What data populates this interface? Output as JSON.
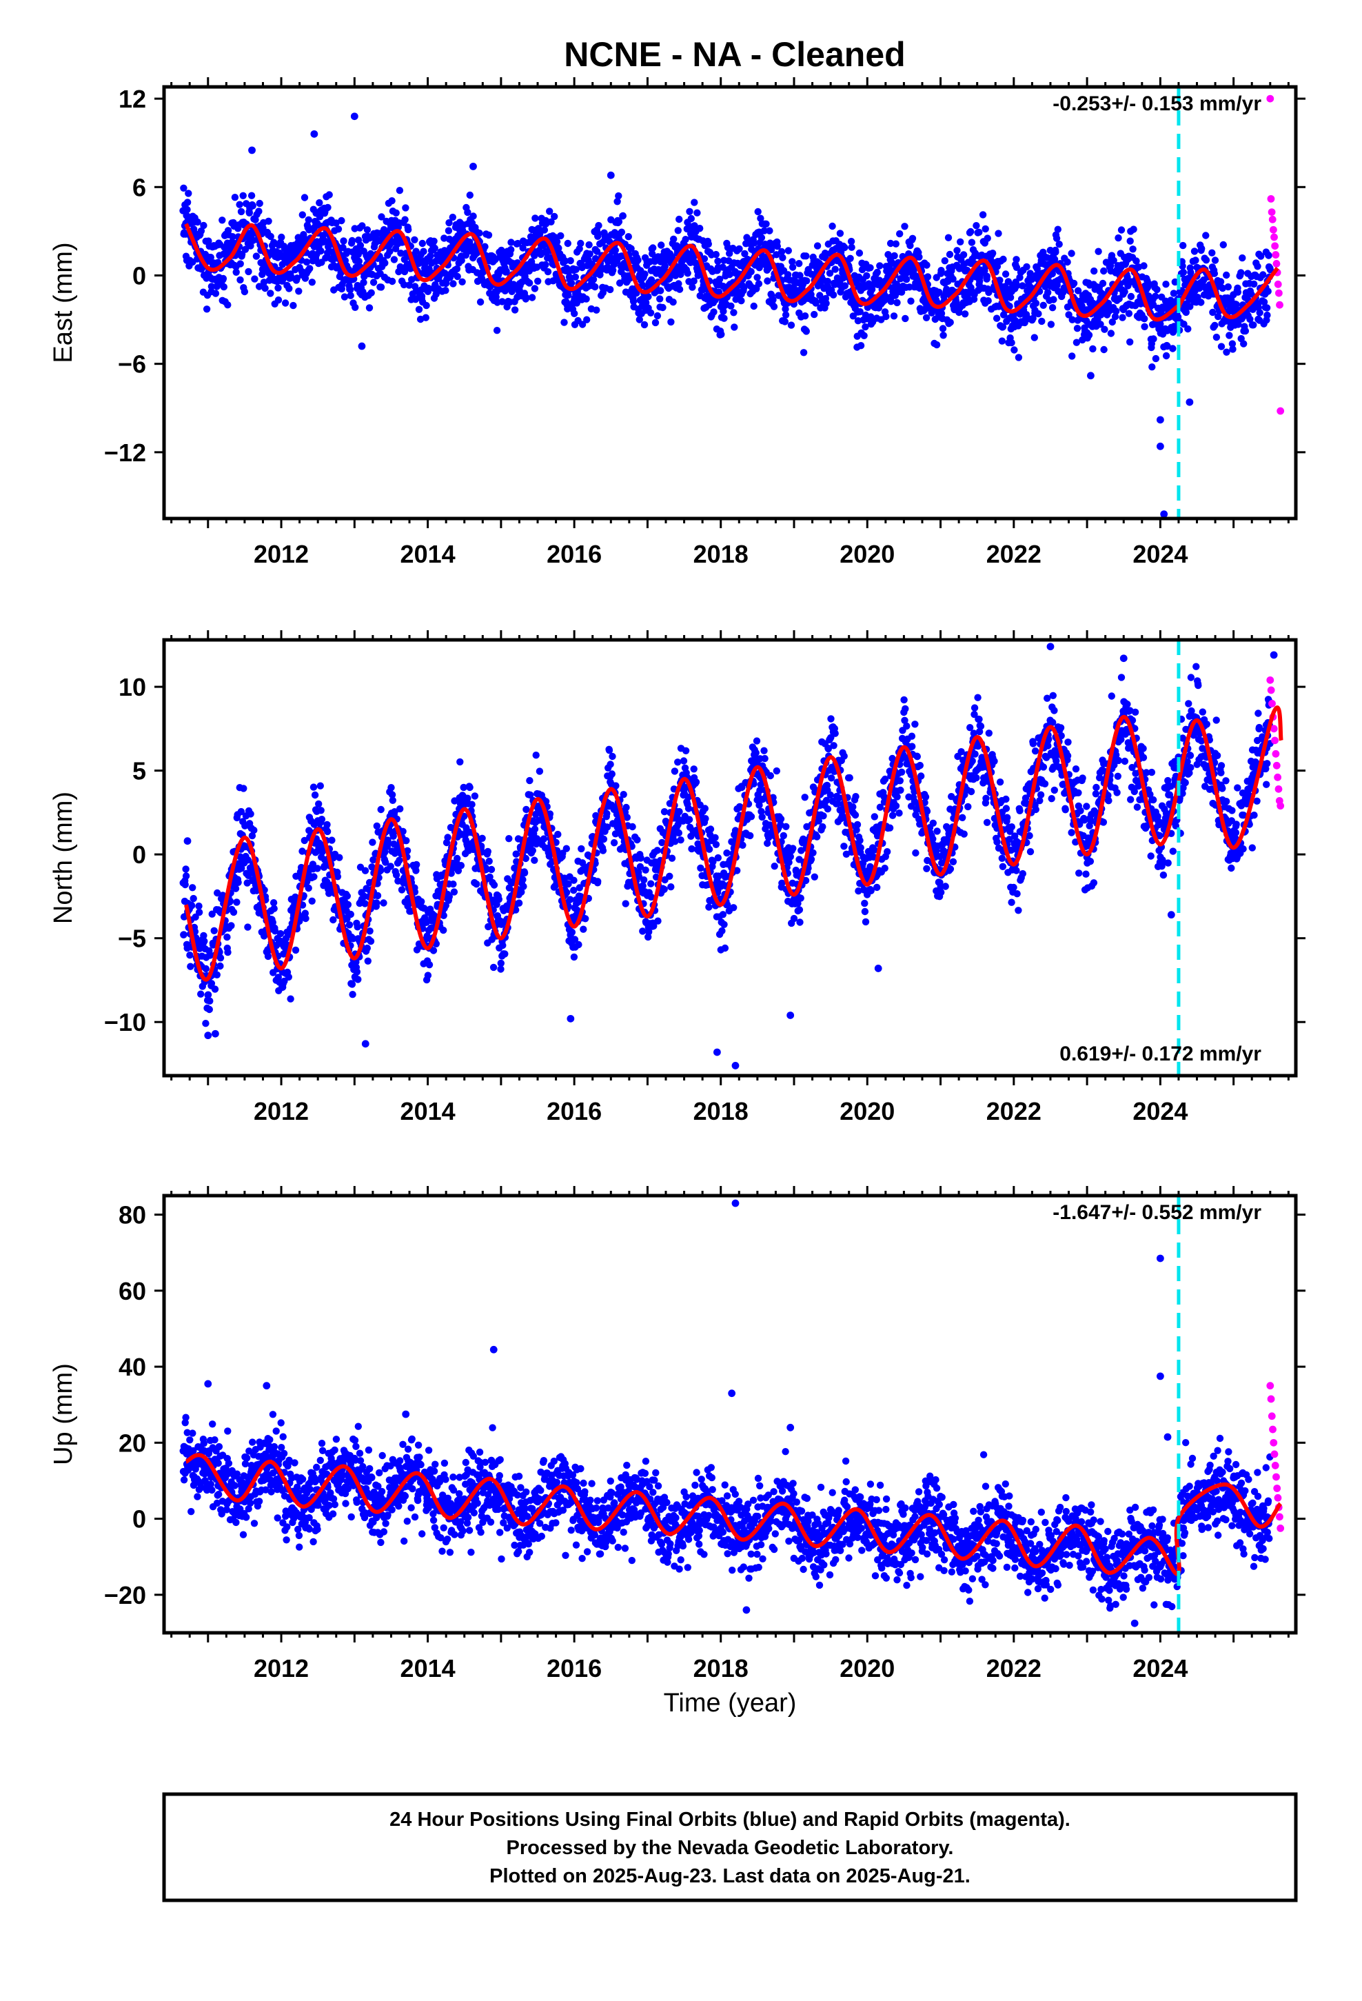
{
  "title": "NCNE  - NA - Cleaned",
  "colors": {
    "final_points": "#0000ff",
    "rapid_points": "#ff00ff",
    "model_curve": "#ff0000",
    "event_line": "#00e5ee",
    "frame": "#000000"
  },
  "chart_data": [
    {
      "type": "scatter",
      "panel": "east",
      "ylabel": "East (mm)",
      "xlabel": "",
      "xlim": [
        2010.4,
        2025.85
      ],
      "ylim": [
        -16.5,
        12.8
      ],
      "x_ticks": [
        2012,
        2014,
        2016,
        2018,
        2020,
        2022,
        2024
      ],
      "y_ticks": [
        12,
        6,
        0,
        -6,
        -12
      ],
      "y_tick_labels": [
        "12",
        "6",
        "0",
        "−6",
        "−12"
      ],
      "rate_text": "-0.253+/- 0.153 mm/yr",
      "rate_position": "top-right",
      "event_line_x": 2024.25,
      "model": {
        "x": [
          2010.7,
          2011.0,
          2011.3,
          2011.6,
          2011.9,
          2012.2,
          2012.6,
          2012.9,
          2013.2,
          2013.6,
          2013.9,
          2014.2,
          2014.6,
          2014.9,
          2015.2,
          2015.6,
          2015.9,
          2016.2,
          2016.6,
          2016.9,
          2017.2,
          2017.6,
          2017.9,
          2018.2,
          2018.6,
          2018.9,
          2019.2,
          2019.6,
          2019.9,
          2020.2,
          2020.6,
          2020.9,
          2021.2,
          2021.6,
          2021.9,
          2022.2,
          2022.6,
          2022.9,
          2023.2,
          2023.6,
          2023.9,
          2024.24,
          2024.26,
          2024.6,
          2024.9,
          2025.2,
          2025.6
        ],
        "y": [
          3.5,
          0.5,
          1.2,
          3.4,
          0.3,
          1.0,
          3.2,
          0.1,
          0.8,
          3.0,
          -0.2,
          0.6,
          2.8,
          -0.5,
          0.3,
          2.5,
          -0.8,
          0.0,
          2.2,
          -1.0,
          -0.3,
          2.0,
          -1.3,
          -0.6,
          1.7,
          -1.6,
          -0.9,
          1.4,
          -1.8,
          -1.1,
          1.2,
          -2.0,
          -1.3,
          1.0,
          -2.3,
          -1.6,
          0.7,
          -2.6,
          -1.9,
          0.4,
          -2.9,
          -2.1,
          -2.0,
          0.4,
          -2.7,
          -2.0,
          0.5
        ]
      },
      "outliers_final": [
        {
          "x": 2011.6,
          "y": 8.5
        },
        {
          "x": 2012.45,
          "y": 9.6
        },
        {
          "x": 2013.0,
          "y": 10.8
        },
        {
          "x": 2014.62,
          "y": 7.4
        },
        {
          "x": 2016.5,
          "y": 6.8
        },
        {
          "x": 2013.1,
          "y": -4.8
        },
        {
          "x": 2023.05,
          "y": -6.8
        },
        {
          "x": 2024.0,
          "y": -9.8
        },
        {
          "x": 2024.0,
          "y": -11.6
        },
        {
          "x": 2024.05,
          "y": -16.2
        },
        {
          "x": 2024.4,
          "y": -8.6
        }
      ],
      "rapid": {
        "x_start": 2025.5,
        "x_end": 2025.64,
        "y": [
          12.0,
          5.2,
          4.3,
          3.8,
          3.1,
          2.6,
          2.0,
          1.4,
          0.8,
          0.2,
          -0.6,
          -1.2,
          -2.0,
          -9.2
        ]
      },
      "scatter_sd": 1.3
    },
    {
      "type": "scatter",
      "panel": "north",
      "ylabel": "North (mm)",
      "xlabel": "",
      "xlim": [
        2010.4,
        2025.85
      ],
      "ylim": [
        -13.2,
        12.8
      ],
      "x_ticks": [
        2012,
        2014,
        2016,
        2018,
        2020,
        2022,
        2024
      ],
      "y_ticks": [
        10,
        5,
        0,
        -5,
        -10
      ],
      "y_tick_labels": [
        "10",
        "5",
        "0",
        "−5",
        "−10"
      ],
      "rate_text": "0.619+/- 0.172 mm/yr",
      "rate_position": "bottom-right",
      "event_line_x": 2024.25,
      "model": {
        "x": [
          2010.7,
          2011.0,
          2011.5,
          2012.0,
          2012.5,
          2013.0,
          2013.5,
          2014.0,
          2014.5,
          2015.0,
          2015.5,
          2016.0,
          2016.5,
          2017.0,
          2017.5,
          2018.0,
          2018.5,
          2019.0,
          2019.5,
          2020.0,
          2020.5,
          2021.0,
          2021.5,
          2022.0,
          2022.5,
          2023.0,
          2023.5,
          2024.0,
          2024.5,
          2025.0,
          2025.55,
          2025.65
        ],
        "y": [
          -3.0,
          -7.4,
          1.0,
          -6.8,
          1.5,
          -6.2,
          2.1,
          -5.6,
          2.7,
          -5.0,
          3.3,
          -4.3,
          3.9,
          -3.7,
          4.5,
          -3.0,
          5.2,
          -2.4,
          5.8,
          -1.8,
          6.4,
          -1.2,
          7.0,
          -0.6,
          7.6,
          0.0,
          8.2,
          0.6,
          8.0,
          0.4,
          8.5,
          6.8
        ]
      },
      "outliers_final": [
        {
          "x": 2010.72,
          "y": 0.8
        },
        {
          "x": 2011.0,
          "y": -10.8
        },
        {
          "x": 2011.1,
          "y": -10.7
        },
        {
          "x": 2013.15,
          "y": -11.3
        },
        {
          "x": 2015.95,
          "y": -9.8
        },
        {
          "x": 2017.95,
          "y": -11.8
        },
        {
          "x": 2018.2,
          "y": -12.6
        },
        {
          "x": 2018.95,
          "y": -9.6
        },
        {
          "x": 2020.15,
          "y": -6.8
        },
        {
          "x": 2022.5,
          "y": 12.4
        },
        {
          "x": 2023.5,
          "y": 11.7
        },
        {
          "x": 2025.55,
          "y": 11.9
        },
        {
          "x": 2024.15,
          "y": -3.6
        }
      ],
      "rapid": {
        "x_start": 2025.5,
        "x_end": 2025.64,
        "y": [
          10.4,
          9.8,
          9.0,
          8.2,
          7.5,
          6.8,
          6.0,
          5.3,
          4.6,
          3.9,
          3.2,
          2.9
        ]
      },
      "scatter_sd": 1.3
    },
    {
      "type": "scatter",
      "panel": "up",
      "ylabel": "Up (mm)",
      "xlabel": "Time (year)",
      "xlim": [
        2010.4,
        2025.85
      ],
      "ylim": [
        -30,
        85
      ],
      "x_ticks": [
        2012,
        2014,
        2016,
        2018,
        2020,
        2022,
        2024
      ],
      "y_ticks": [
        80,
        60,
        40,
        20,
        0,
        -20
      ],
      "y_tick_labels": [
        "80",
        "60",
        "40",
        "20",
        "0",
        "−20"
      ],
      "rate_text": "-1.647+/- 0.552 mm/yr",
      "rate_position": "top-right",
      "event_line_x": 2024.25,
      "model": {
        "x": [
          2010.7,
          2010.95,
          2011.4,
          2011.85,
          2012.3,
          2012.85,
          2013.3,
          2013.85,
          2014.3,
          2014.85,
          2015.3,
          2015.85,
          2016.3,
          2016.85,
          2017.3,
          2017.85,
          2018.3,
          2018.85,
          2019.3,
          2019.85,
          2020.3,
          2020.85,
          2021.3,
          2021.85,
          2022.3,
          2022.85,
          2023.3,
          2023.85,
          2024.24,
          2024.26,
          2024.9,
          2025.35,
          2025.64
        ],
        "y": [
          15.0,
          16.2,
          4.8,
          15.0,
          3.2,
          13.8,
          1.8,
          12.0,
          0.2,
          10.5,
          -1.5,
          8.5,
          -2.8,
          7.0,
          -4.0,
          5.5,
          -5.5,
          4.0,
          -7.2,
          2.5,
          -8.8,
          1.0,
          -10.5,
          -0.5,
          -12.5,
          -1.8,
          -14.2,
          -5.0,
          -14.5,
          0.5,
          9.0,
          -2.0,
          4.0
        ]
      },
      "outliers_final": [
        {
          "x": 2018.2,
          "y": 83.0
        },
        {
          "x": 2024.0,
          "y": 68.5
        },
        {
          "x": 2024.0,
          "y": 37.5
        },
        {
          "x": 2014.9,
          "y": 44.5
        },
        {
          "x": 2018.15,
          "y": 33.0
        },
        {
          "x": 2011.0,
          "y": 35.5
        },
        {
          "x": 2011.8,
          "y": 35.0
        },
        {
          "x": 2013.7,
          "y": 27.5
        },
        {
          "x": 2018.95,
          "y": 24.0
        },
        {
          "x": 2023.65,
          "y": -27.5
        },
        {
          "x": 2018.35,
          "y": -24.0
        },
        {
          "x": 2024.1,
          "y": 21.5
        }
      ],
      "rapid": {
        "x_start": 2025.5,
        "x_end": 2025.64,
        "y": [
          35.0,
          31.5,
          27.0,
          23.5,
          20.0,
          17.0,
          14.0,
          11.0,
          8.0,
          5.5,
          3.0,
          0.5,
          -2.5
        ]
      },
      "scatter_sd": 5.0
    }
  ],
  "caption": {
    "lines": [
      "24 Hour Positions Using Final Orbits (blue) and Rapid Orbits (magenta).",
      "Processed by the Nevada Geodetic Laboratory.",
      "Plotted on 2025-Aug-23. Last data on 2025-Aug-21."
    ]
  }
}
